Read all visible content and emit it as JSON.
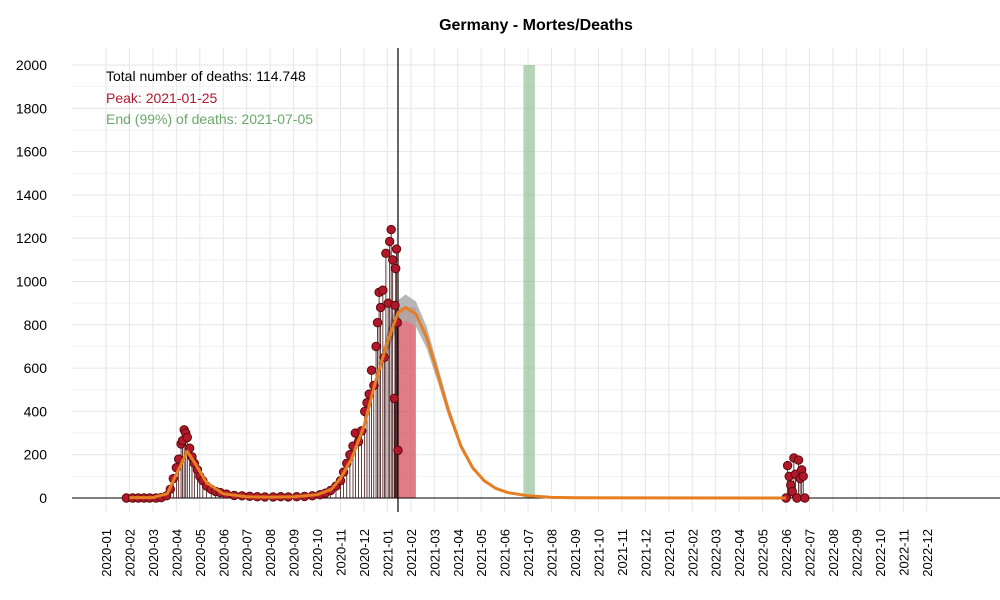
{
  "chart_data": {
    "type": "line",
    "title": "Germany - Mortes/Deaths",
    "xlabel": "",
    "ylabel": "",
    "ylim": [
      0,
      2000
    ],
    "yticks": [
      0,
      200,
      400,
      600,
      800,
      1000,
      1200,
      1400,
      1600,
      1800,
      2000
    ],
    "xticks": [
      "2020-01",
      "2020-02",
      "2020-03",
      "2020-04",
      "2020-05",
      "2020-06",
      "2020-07",
      "2020-08",
      "2020-09",
      "2020-10",
      "2020-11",
      "2020-12",
      "2021-01",
      "2021-02",
      "2021-03",
      "2021-04",
      "2021-05",
      "2021-06",
      "2021-07",
      "2021-08",
      "2021-09",
      "2021-10",
      "2021-11",
      "2021-12",
      "2022-01",
      "2022-02",
      "2022-03",
      "2022-04",
      "2022-05",
      "2022-06",
      "2022-07",
      "2022-08",
      "2022-09",
      "2022-10",
      "2022-11",
      "2022-12"
    ],
    "grid": true,
    "annotations": {
      "total": "Total number of deaths: 114.748",
      "peak": "Peak: 2021-01-25",
      "end": "End (99%) of deaths: 2021-07-05"
    },
    "colors": {
      "points": "#b2182b",
      "fit_line": "#e67e22",
      "confidence_band": "#aaaaaa",
      "peak_band": "#d6505e",
      "end_band": "#8fbf8f",
      "peak_text": "#b2182b",
      "end_text": "#6aa86a"
    },
    "vertical_line_date": "2021-01-15",
    "peak_band": {
      "start": "2021-01-15",
      "end": "2021-02-07"
    },
    "end_band": {
      "start": "2021-06-25",
      "end": "2021-07-10"
    },
    "fit_curve": [
      {
        "x": "2020-02-01",
        "y": 2
      },
      {
        "x": "2020-03-01",
        "y": 2
      },
      {
        "x": "2020-03-20",
        "y": 20
      },
      {
        "x": "2020-04-01",
        "y": 110
      },
      {
        "x": "2020-04-15",
        "y": 215
      },
      {
        "x": "2020-04-25",
        "y": 160
      },
      {
        "x": "2020-05-10",
        "y": 70
      },
      {
        "x": "2020-06-01",
        "y": 20
      },
      {
        "x": "2020-07-01",
        "y": 6
      },
      {
        "x": "2020-08-01",
        "y": 4
      },
      {
        "x": "2020-09-01",
        "y": 6
      },
      {
        "x": "2020-10-01",
        "y": 15
      },
      {
        "x": "2020-10-20",
        "y": 40
      },
      {
        "x": "2020-11-01",
        "y": 90
      },
      {
        "x": "2020-11-15",
        "y": 180
      },
      {
        "x": "2020-12-01",
        "y": 330
      },
      {
        "x": "2020-12-15",
        "y": 520
      },
      {
        "x": "2021-01-01",
        "y": 720
      },
      {
        "x": "2021-01-15",
        "y": 855
      },
      {
        "x": "2021-01-25",
        "y": 880
      },
      {
        "x": "2021-02-07",
        "y": 850
      },
      {
        "x": "2021-02-20",
        "y": 740
      },
      {
        "x": "2021-03-05",
        "y": 580
      },
      {
        "x": "2021-03-20",
        "y": 400
      },
      {
        "x": "2021-04-05",
        "y": 240
      },
      {
        "x": "2021-04-20",
        "y": 140
      },
      {
        "x": "2021-05-05",
        "y": 80
      },
      {
        "x": "2021-05-20",
        "y": 45
      },
      {
        "x": "2021-06-05",
        "y": 25
      },
      {
        "x": "2021-07-01",
        "y": 10
      },
      {
        "x": "2021-08-01",
        "y": 3
      },
      {
        "x": "2021-09-01",
        "y": 1
      },
      {
        "x": "2022-06-01",
        "y": 0
      }
    ],
    "band_halfwidth_at_peak": 60,
    "observed_points": [
      {
        "x": "2020-01-28",
        "y": 0
      },
      {
        "x": "2020-02-05",
        "y": 0
      },
      {
        "x": "2020-02-12",
        "y": 0
      },
      {
        "x": "2020-02-19",
        "y": 0
      },
      {
        "x": "2020-02-26",
        "y": 0
      },
      {
        "x": "2020-03-05",
        "y": 0
      },
      {
        "x": "2020-03-12",
        "y": 2
      },
      {
        "x": "2020-03-19",
        "y": 10
      },
      {
        "x": "2020-03-24",
        "y": 40
      },
      {
        "x": "2020-03-28",
        "y": 90
      },
      {
        "x": "2020-04-01",
        "y": 140
      },
      {
        "x": "2020-04-04",
        "y": 180
      },
      {
        "x": "2020-04-07",
        "y": 250
      },
      {
        "x": "2020-04-09",
        "y": 265
      },
      {
        "x": "2020-04-11",
        "y": 315
      },
      {
        "x": "2020-04-13",
        "y": 300
      },
      {
        "x": "2020-04-15",
        "y": 280
      },
      {
        "x": "2020-04-18",
        "y": 230
      },
      {
        "x": "2020-04-21",
        "y": 190
      },
      {
        "x": "2020-04-24",
        "y": 160
      },
      {
        "x": "2020-04-28",
        "y": 130
      },
      {
        "x": "2020-05-01",
        "y": 100
      },
      {
        "x": "2020-05-05",
        "y": 80
      },
      {
        "x": "2020-05-10",
        "y": 55
      },
      {
        "x": "2020-05-16",
        "y": 40
      },
      {
        "x": "2020-05-22",
        "y": 30
      },
      {
        "x": "2020-05-28",
        "y": 25
      },
      {
        "x": "2020-06-05",
        "y": 18
      },
      {
        "x": "2020-06-15",
        "y": 12
      },
      {
        "x": "2020-06-25",
        "y": 10
      },
      {
        "x": "2020-07-05",
        "y": 8
      },
      {
        "x": "2020-07-15",
        "y": 6
      },
      {
        "x": "2020-07-25",
        "y": 5
      },
      {
        "x": "2020-08-05",
        "y": 5
      },
      {
        "x": "2020-08-15",
        "y": 6
      },
      {
        "x": "2020-08-25",
        "y": 5
      },
      {
        "x": "2020-09-05",
        "y": 6
      },
      {
        "x": "2020-09-15",
        "y": 7
      },
      {
        "x": "2020-09-25",
        "y": 10
      },
      {
        "x": "2020-10-05",
        "y": 15
      },
      {
        "x": "2020-10-12",
        "y": 22
      },
      {
        "x": "2020-10-19",
        "y": 35
      },
      {
        "x": "2020-10-26",
        "y": 55
      },
      {
        "x": "2020-11-01",
        "y": 80
      },
      {
        "x": "2020-11-05",
        "y": 120
      },
      {
        "x": "2020-11-09",
        "y": 160
      },
      {
        "x": "2020-11-13",
        "y": 200
      },
      {
        "x": "2020-11-17",
        "y": 240
      },
      {
        "x": "2020-11-20",
        "y": 300
      },
      {
        "x": "2020-11-24",
        "y": 260
      },
      {
        "x": "2020-11-28",
        "y": 310
      },
      {
        "x": "2020-12-02",
        "y": 400
      },
      {
        "x": "2020-12-05",
        "y": 440
      },
      {
        "x": "2020-12-08",
        "y": 480
      },
      {
        "x": "2020-12-11",
        "y": 590
      },
      {
        "x": "2020-12-14",
        "y": 520
      },
      {
        "x": "2020-12-17",
        "y": 700
      },
      {
        "x": "2020-12-19",
        "y": 810
      },
      {
        "x": "2020-12-21",
        "y": 950
      },
      {
        "x": "2020-12-23",
        "y": 880
      },
      {
        "x": "2020-12-26",
        "y": 960
      },
      {
        "x": "2020-12-28",
        "y": 650
      },
      {
        "x": "2020-12-30",
        "y": 1130
      },
      {
        "x": "2021-01-02",
        "y": 900
      },
      {
        "x": "2021-01-04",
        "y": 1185
      },
      {
        "x": "2021-01-06",
        "y": 1240
      },
      {
        "x": "2021-01-08",
        "y": 1100
      },
      {
        "x": "2021-01-10",
        "y": 460
      },
      {
        "x": "2021-01-11",
        "y": 890
      },
      {
        "x": "2021-01-12",
        "y": 1060
      },
      {
        "x": "2021-01-13",
        "y": 1150
      },
      {
        "x": "2021-01-14",
        "y": 810
      },
      {
        "x": "2021-01-15",
        "y": 220
      },
      {
        "x": "2022-06-01",
        "y": 0
      },
      {
        "x": "2022-06-03",
        "y": 150
      },
      {
        "x": "2022-06-05",
        "y": 100
      },
      {
        "x": "2022-06-07",
        "y": 60
      },
      {
        "x": "2022-06-09",
        "y": 30
      },
      {
        "x": "2022-06-11",
        "y": 185
      },
      {
        "x": "2022-06-13",
        "y": 110
      },
      {
        "x": "2022-06-15",
        "y": 0
      },
      {
        "x": "2022-06-17",
        "y": 175
      },
      {
        "x": "2022-06-19",
        "y": 90
      },
      {
        "x": "2022-06-21",
        "y": 130
      },
      {
        "x": "2022-06-23",
        "y": 100
      },
      {
        "x": "2022-06-25",
        "y": 0
      }
    ]
  }
}
